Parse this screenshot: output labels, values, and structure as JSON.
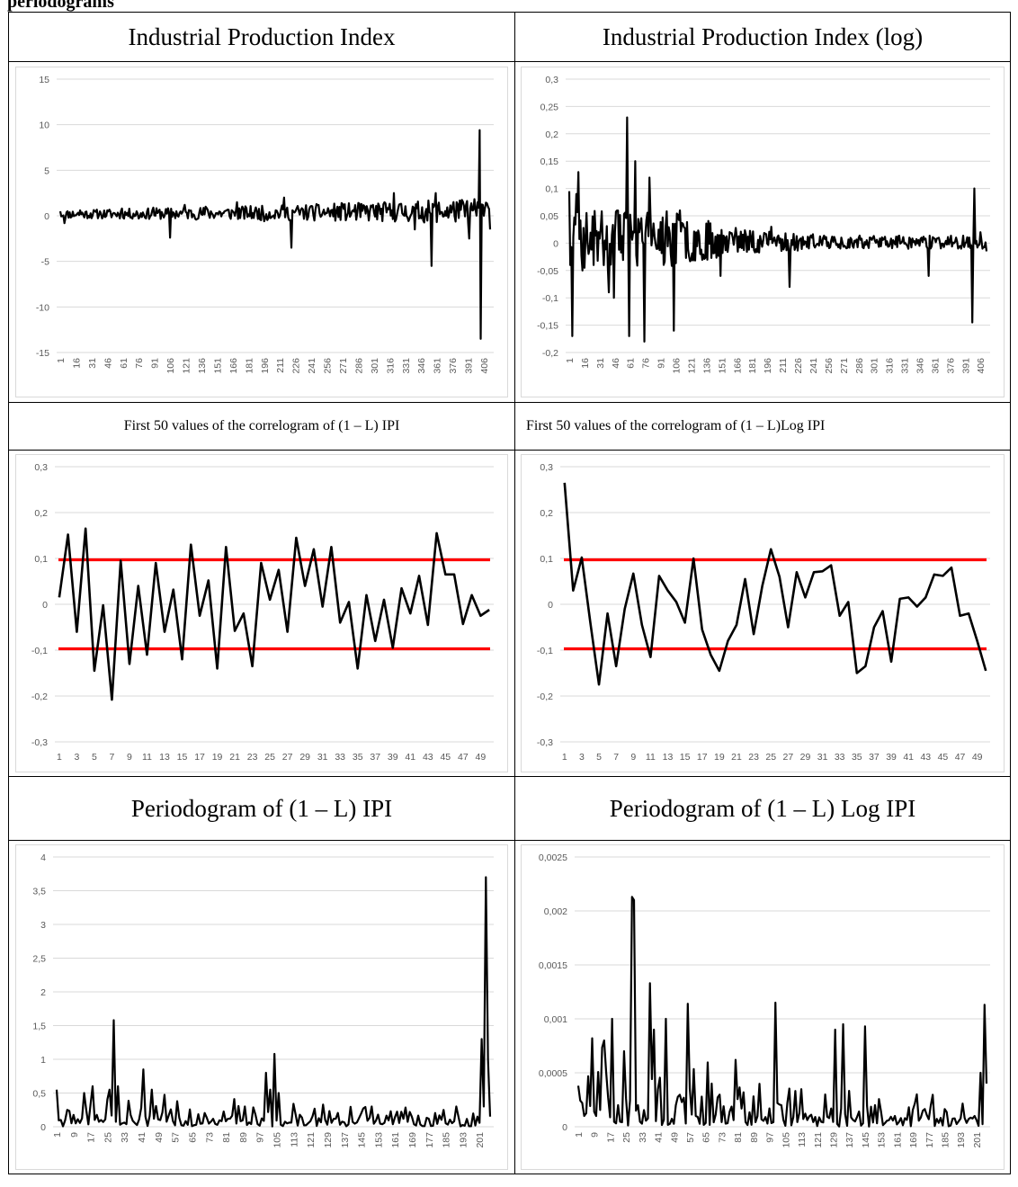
{
  "header_fragment": "periodograms",
  "cells": {
    "r1c1_title": "Industrial Production Index",
    "r1c2_title": "Industrial Production Index (log)",
    "r2c1_title": "First 50 values of the correlogram of (1 – L) IPI",
    "r2c2_title": "First 50 values of the correlogram of (1 – L)Log IPI",
    "r3c1_title": "Periodogram of (1 – L) IPI",
    "r3c2_title": "Periodogram of (1 – L) Log IPI"
  },
  "colors": {
    "series": "#000000",
    "band": "#ff0000",
    "grid": "#d9d9d9",
    "tick": "#595959"
  },
  "chart_data": [
    {
      "id": "ipi",
      "type": "line",
      "title": "",
      "ylim": [
        -15,
        15
      ],
      "yticks": [
        15,
        10,
        5,
        0,
        -5,
        -10,
        -15
      ],
      "ytick_labels": [
        "15",
        "10",
        "5",
        "0",
        "-5",
        "-10",
        "-15"
      ],
      "xtick_labels": [
        "1",
        "16",
        "31",
        "46",
        "61",
        "76",
        "91",
        "106",
        "121",
        "136",
        "151",
        "166",
        "181",
        "196",
        "211",
        "226",
        "241",
        "256",
        "271",
        "286",
        "301",
        "316",
        "331",
        "346",
        "361",
        "376",
        "391",
        "406"
      ],
      "x_first": 1,
      "x_step": 15,
      "n": 412,
      "grid": true,
      "key_points": [
        [
          1,
          0.5
        ],
        [
          5,
          -0.8
        ],
        [
          20,
          0.6
        ],
        [
          40,
          0.2
        ],
        [
          60,
          0.8
        ],
        [
          76,
          -0.3
        ],
        [
          90,
          0.9
        ],
        [
          106,
          -2.4
        ],
        [
          120,
          1.2
        ],
        [
          140,
          1.0
        ],
        [
          170,
          1.5
        ],
        [
          196,
          -0.6
        ],
        [
          215,
          2.0
        ],
        [
          222,
          -3.5
        ],
        [
          240,
          1.0
        ],
        [
          270,
          1.4
        ],
        [
          300,
          1.2
        ],
        [
          320,
          2.5
        ],
        [
          340,
          -1.5
        ],
        [
          356,
          -5.5
        ],
        [
          360,
          2.5
        ],
        [
          380,
          1.5
        ],
        [
          392,
          -2.5
        ],
        [
          400,
          1.5
        ],
        [
          402,
          9.4
        ],
        [
          403,
          -13.5
        ],
        [
          405,
          1.2
        ],
        [
          410,
          1.0
        ],
        [
          412,
          -1.5
        ]
      ],
      "volatility": [
        [
          1,
          0.5
        ],
        [
          200,
          0.9
        ],
        [
          340,
          1.3
        ],
        [
          412,
          1.6
        ]
      ]
    },
    {
      "id": "ipi_log",
      "type": "line",
      "title": "",
      "ylim": [
        -0.2,
        0.3
      ],
      "yticks": [
        0.3,
        0.25,
        0.2,
        0.15,
        0.1,
        0.05,
        0,
        -0.05,
        -0.1,
        -0.15,
        -0.2
      ],
      "ytick_labels": [
        "0,3",
        "0,25",
        "0,2",
        "0,15",
        "0,1",
        "0,05",
        "0",
        "-0,05",
        "-0,1",
        "-0,15",
        "-0,2"
      ],
      "xtick_labels": [
        "1",
        "16",
        "31",
        "46",
        "61",
        "76",
        "91",
        "106",
        "121",
        "136",
        "151",
        "166",
        "181",
        "196",
        "211",
        "226",
        "241",
        "256",
        "271",
        "286",
        "301",
        "316",
        "331",
        "346",
        "361",
        "376",
        "391",
        "406"
      ],
      "x_first": 1,
      "x_step": 15,
      "n": 412,
      "grid": true,
      "key_points": [
        [
          1,
          0.095
        ],
        [
          2,
          -0.04
        ],
        [
          4,
          -0.17
        ],
        [
          8,
          0.09
        ],
        [
          10,
          0.13
        ],
        [
          14,
          -0.05
        ],
        [
          30,
          0.02
        ],
        [
          40,
          -0.09
        ],
        [
          45,
          -0.1
        ],
        [
          58,
          0.23
        ],
        [
          60,
          -0.17
        ],
        [
          66,
          0.15
        ],
        [
          75,
          -0.18
        ],
        [
          80,
          0.12
        ],
        [
          104,
          -0.16
        ],
        [
          110,
          0.06
        ],
        [
          130,
          -0.02
        ],
        [
          150,
          -0.06
        ],
        [
          200,
          0.03
        ],
        [
          218,
          -0.08
        ],
        [
          240,
          0.01
        ],
        [
          300,
          0.01
        ],
        [
          355,
          -0.06
        ],
        [
          380,
          0.0
        ],
        [
          398,
          -0.145
        ],
        [
          400,
          0.1
        ],
        [
          406,
          0.02
        ],
        [
          412,
          -0.015
        ]
      ],
      "volatility": [
        [
          1,
          0.06
        ],
        [
          110,
          0.05
        ],
        [
          160,
          0.025
        ],
        [
          260,
          0.012
        ],
        [
          412,
          0.012
        ]
      ]
    },
    {
      "id": "acf_ipi",
      "type": "line",
      "title": "",
      "ylim": [
        -0.3,
        0.3
      ],
      "yticks": [
        0.3,
        0.2,
        0.1,
        0,
        -0.1,
        -0.2,
        -0.3
      ],
      "ytick_labels": [
        "0,3",
        "0,2",
        "0,1",
        "0",
        "-0,1",
        "-0,2",
        "-0,3"
      ],
      "xtick_labels": [
        "1",
        "3",
        "5",
        "7",
        "9",
        "11",
        "13",
        "15",
        "17",
        "19",
        "21",
        "23",
        "25",
        "27",
        "29",
        "31",
        "33",
        "35",
        "37",
        "39",
        "41",
        "43",
        "45",
        "47",
        "49"
      ],
      "x": [
        1,
        2,
        3,
        4,
        5,
        6,
        7,
        8,
        9,
        10,
        11,
        12,
        13,
        14,
        15,
        16,
        17,
        18,
        19,
        20,
        21,
        22,
        23,
        24,
        25,
        26,
        27,
        28,
        29,
        30,
        31,
        32,
        33,
        34,
        35,
        36,
        37,
        38,
        39,
        40,
        41,
        42,
        43,
        44,
        45,
        46,
        47,
        48,
        49,
        50
      ],
      "values": [
        0.015,
        0.152,
        -0.06,
        0.165,
        -0.145,
        -0.002,
        -0.208,
        0.095,
        -0.13,
        0.04,
        -0.11,
        0.09,
        -0.06,
        0.032,
        -0.12,
        0.13,
        -0.025,
        0.052,
        -0.14,
        0.125,
        -0.058,
        -0.02,
        -0.135,
        0.09,
        0.01,
        0.075,
        -0.06,
        0.145,
        0.04,
        0.12,
        -0.005,
        0.125,
        -0.04,
        0.005,
        -0.14,
        0.02,
        -0.08,
        0.01,
        -0.095,
        0.035,
        -0.02,
        0.062,
        -0.045,
        0.155,
        0.065,
        0.065,
        -0.043,
        0.02,
        -0.025,
        -0.012
      ],
      "bands": [
        0.097,
        -0.097
      ],
      "grid": true
    },
    {
      "id": "acf_ipi_log",
      "type": "line",
      "title": "",
      "ylim": [
        -0.3,
        0.3
      ],
      "yticks": [
        0.3,
        0.2,
        0.1,
        0,
        -0.1,
        -0.2,
        -0.3
      ],
      "ytick_labels": [
        "0,3",
        "0,2",
        "0,1",
        "0",
        "-0,1",
        "-0,2",
        "-0,3"
      ],
      "xtick_labels": [
        "1",
        "3",
        "5",
        "7",
        "9",
        "11",
        "13",
        "15",
        "17",
        "19",
        "21",
        "23",
        "25",
        "27",
        "29",
        "31",
        "33",
        "35",
        "37",
        "39",
        "41",
        "43",
        "45",
        "47",
        "49"
      ],
      "x": [
        1,
        2,
        3,
        4,
        5,
        6,
        7,
        8,
        9,
        10,
        11,
        12,
        13,
        14,
        15,
        16,
        17,
        18,
        19,
        20,
        21,
        22,
        23,
        24,
        25,
        26,
        27,
        28,
        29,
        30,
        31,
        32,
        33,
        34,
        35,
        36,
        37,
        38,
        39,
        40,
        41,
        42,
        43,
        44,
        45,
        46,
        47,
        48,
        49,
        50
      ],
      "values": [
        0.265,
        0.03,
        0.102,
        -0.04,
        -0.175,
        -0.02,
        -0.135,
        -0.01,
        0.067,
        -0.045,
        -0.115,
        0.062,
        0.03,
        0.005,
        -0.04,
        0.1,
        -0.055,
        -0.11,
        -0.145,
        -0.08,
        -0.045,
        0.055,
        -0.065,
        0.04,
        0.12,
        0.06,
        -0.05,
        0.07,
        0.015,
        0.07,
        0.072,
        0.085,
        -0.025,
        0.005,
        -0.15,
        -0.135,
        -0.05,
        -0.015,
        -0.125,
        0.012,
        0.015,
        -0.005,
        0.015,
        0.065,
        0.062,
        0.08,
        -0.025,
        -0.02,
        -0.08,
        -0.145
      ],
      "bands": [
        0.097,
        -0.097
      ],
      "grid": true
    },
    {
      "id": "pgram_ipi",
      "type": "line",
      "title": "",
      "ylim": [
        0,
        4
      ],
      "yticks": [
        4,
        3.5,
        3,
        2.5,
        2,
        1.5,
        1,
        0.5,
        0
      ],
      "ytick_labels": [
        "4",
        "3,5",
        "3",
        "2,5",
        "2",
        "1,5",
        "1",
        "0,5",
        "0"
      ],
      "xtick_labels": [
        "1",
        "9",
        "17",
        "25",
        "33",
        "41",
        "49",
        "57",
        "65",
        "73",
        "81",
        "89",
        "97",
        "105",
        "113",
        "121",
        "129",
        "137",
        "145",
        "153",
        "161",
        "169",
        "177",
        "185",
        "193",
        "201"
      ],
      "x_first": 1,
      "x_step": 8,
      "n": 206,
      "grid": true,
      "key_points": [
        [
          1,
          0.55
        ],
        [
          3,
          0.1
        ],
        [
          6,
          0.25
        ],
        [
          10,
          0.05
        ],
        [
          14,
          0.5
        ],
        [
          18,
          0.6
        ],
        [
          22,
          0.1
        ],
        [
          26,
          0.55
        ],
        [
          28,
          1.58
        ],
        [
          30,
          0.6
        ],
        [
          32,
          0.05
        ],
        [
          42,
          0.85
        ],
        [
          46,
          0.55
        ],
        [
          70,
          0.05
        ],
        [
          90,
          0.3
        ],
        [
          100,
          0.8
        ],
        [
          102,
          0.55
        ],
        [
          104,
          1.08
        ],
        [
          106,
          0.5
        ],
        [
          110,
          0.05
        ],
        [
          150,
          0.3
        ],
        [
          190,
          0.3
        ],
        [
          200,
          0.15
        ],
        [
          202,
          1.3
        ],
        [
          203,
          0.3
        ],
        [
          204,
          3.7
        ],
        [
          205,
          1.0
        ],
        [
          206,
          0.15
        ]
      ],
      "volatility": [
        [
          1,
          0.18
        ],
        [
          60,
          0.15
        ],
        [
          150,
          0.12
        ],
        [
          206,
          0.1
        ]
      ]
    },
    {
      "id": "pgram_ipi_log",
      "type": "line",
      "title": "",
      "ylim": [
        0,
        0.0025
      ],
      "yticks": [
        0.0025,
        0.002,
        0.0015,
        0.001,
        0.0005,
        0
      ],
      "ytick_labels": [
        "0,0025",
        "0,002",
        "0,0015",
        "0,001",
        "0,0005",
        "0"
      ],
      "xtick_labels": [
        "1",
        "9",
        "17",
        "25",
        "33",
        "41",
        "49",
        "57",
        "65",
        "73",
        "81",
        "89",
        "97",
        "105",
        "113",
        "121",
        "129",
        "137",
        "145",
        "153",
        "161",
        "169",
        "177",
        "185",
        "193",
        "201"
      ],
      "x_first": 1,
      "x_step": 8,
      "n": 206,
      "grid": true,
      "key_points": [
        [
          1,
          0.00038
        ],
        [
          4,
          0.0001
        ],
        [
          8,
          0.00082
        ],
        [
          10,
          0.0001
        ],
        [
          14,
          0.0008
        ],
        [
          18,
          0.001
        ],
        [
          21,
          0.0002
        ],
        [
          24,
          0.0007
        ],
        [
          28,
          0.00213
        ],
        [
          29,
          0.0021
        ],
        [
          31,
          0.0002
        ],
        [
          37,
          0.00133
        ],
        [
          39,
          0.0009
        ],
        [
          45,
          0.001
        ],
        [
          50,
          0.0002
        ],
        [
          56,
          0.00114
        ],
        [
          60,
          0.0001
        ],
        [
          80,
          0.00062
        ],
        [
          100,
          0.00115
        ],
        [
          103,
          0.0002
        ],
        [
          130,
          0.0009
        ],
        [
          134,
          0.00095
        ],
        [
          145,
          0.00093
        ],
        [
          150,
          0.0002
        ],
        [
          160,
          0.0001
        ],
        [
          200,
          0.0001
        ],
        [
          203,
          0.0005
        ],
        [
          205,
          0.00113
        ],
        [
          206,
          0.0004
        ]
      ],
      "volatility": [
        [
          1,
          0.0003
        ],
        [
          80,
          0.00018
        ],
        [
          150,
          0.00012
        ],
        [
          206,
          8e-05
        ]
      ]
    }
  ]
}
